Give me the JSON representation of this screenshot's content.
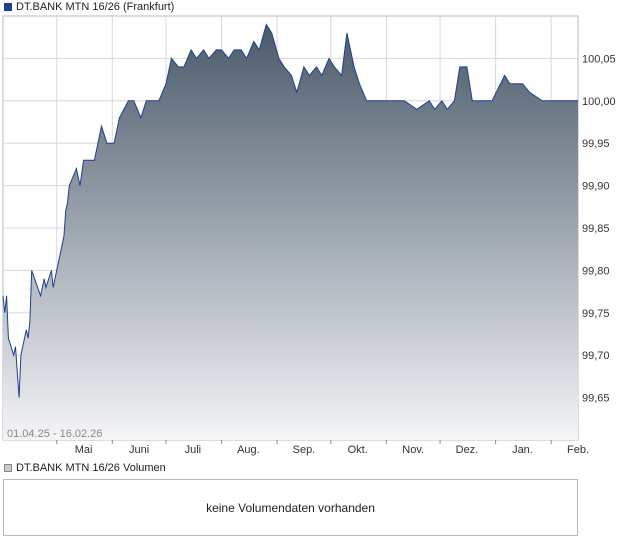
{
  "header": {
    "title": "DT.BANK MTN 16/26 (Frankfurt)"
  },
  "range_label": "01.04.25 - 16.02.26",
  "volume": {
    "title": "DT.BANK MTN 16/26 Volumen",
    "empty_message": "keine Volumendaten vorhanden"
  },
  "colors": {
    "line": "#1f3f8f",
    "fill_top": "#4a5a6a",
    "fill_bottom": "#f4f5f7",
    "grid": "#d8d8d8"
  },
  "chart_data": {
    "type": "area",
    "title": "DT.BANK MTN 16/26 (Frankfurt)",
    "ylim": [
      99.6,
      100.1
    ],
    "y_ticks": [
      "100,05",
      "100,00",
      "99,95",
      "99,90",
      "99,85",
      "99,80",
      "99,75",
      "99,70",
      "99,65"
    ],
    "y_tick_values": [
      100.05,
      100.0,
      99.95,
      99.9,
      99.85,
      99.8,
      99.75,
      99.7,
      99.65
    ],
    "x_ticks": [
      "Mai",
      "Juni",
      "Juli",
      "Aug.",
      "Sep.",
      "Okt.",
      "Nov.",
      "Dez.",
      "Jan.",
      "Feb."
    ],
    "x_tick_dates": [
      "2025-05-01",
      "2025-06-01",
      "2025-07-01",
      "2025-08-01",
      "2025-09-01",
      "2025-10-01",
      "2025-11-01",
      "2025-12-01",
      "2026-01-01",
      "2026-02-01"
    ],
    "x_range": [
      "2025-04-01",
      "2026-02-16"
    ],
    "grid": true,
    "series": [
      {
        "x": [
          "2025-04-01",
          "2025-04-02",
          "2025-04-03",
          "2025-04-04",
          "2025-04-07",
          "2025-04-08",
          "2025-04-09",
          "2025-04-10",
          "2025-04-11",
          "2025-04-14",
          "2025-04-15",
          "2025-04-16",
          "2025-04-17",
          "2025-04-22",
          "2025-04-23",
          "2025-04-24",
          "2025-04-25",
          "2025-04-28",
          "2025-04-29",
          "2025-04-30",
          "2025-05-02",
          "2025-05-05",
          "2025-05-06",
          "2025-05-07",
          "2025-05-08",
          "2025-05-12",
          "2025-05-14",
          "2025-05-16",
          "2025-05-20",
          "2025-05-22",
          "2025-05-26",
          "2025-05-29",
          "2025-06-02",
          "2025-06-05",
          "2025-06-10",
          "2025-06-13",
          "2025-06-17",
          "2025-06-20",
          "2025-06-24",
          "2025-06-27",
          "2025-07-01",
          "2025-07-04",
          "2025-07-08",
          "2025-07-11",
          "2025-07-15",
          "2025-07-18",
          "2025-07-22",
          "2025-07-25",
          "2025-07-29",
          "2025-08-01",
          "2025-08-05",
          "2025-08-08",
          "2025-08-12",
          "2025-08-15",
          "2025-08-19",
          "2025-08-22",
          "2025-08-26",
          "2025-08-29",
          "2025-09-02",
          "2025-09-05",
          "2025-09-09",
          "2025-09-12",
          "2025-09-16",
          "2025-09-19",
          "2025-09-23",
          "2025-09-26",
          "2025-09-30",
          "2025-10-03",
          "2025-10-07",
          "2025-10-10",
          "2025-10-14",
          "2025-10-17",
          "2025-10-21",
          "2025-10-28",
          "2025-11-04",
          "2025-11-11",
          "2025-11-18",
          "2025-11-25",
          "2025-11-28",
          "2025-12-02",
          "2025-12-05",
          "2025-12-09",
          "2025-12-12",
          "2025-12-16",
          "2025-12-19",
          "2025-12-23",
          "2025-12-30",
          "2026-01-06",
          "2026-01-09",
          "2026-01-13",
          "2026-01-16",
          "2026-01-20",
          "2026-01-27",
          "2026-02-03",
          "2026-02-10",
          "2026-02-16"
        ],
        "values": [
          99.77,
          99.75,
          99.77,
          99.72,
          99.7,
          99.71,
          99.68,
          99.65,
          99.7,
          99.73,
          99.72,
          99.74,
          99.8,
          99.77,
          99.78,
          99.79,
          99.78,
          99.8,
          99.78,
          99.79,
          99.81,
          99.84,
          99.87,
          99.88,
          99.9,
          99.92,
          99.9,
          99.93,
          99.93,
          99.93,
          99.97,
          99.95,
          99.95,
          99.98,
          100.0,
          100.0,
          99.98,
          100.0,
          100.0,
          100.0,
          100.02,
          100.05,
          100.04,
          100.04,
          100.06,
          100.05,
          100.06,
          100.05,
          100.06,
          100.06,
          100.05,
          100.06,
          100.06,
          100.05,
          100.07,
          100.06,
          100.09,
          100.08,
          100.05,
          100.04,
          100.03,
          100.01,
          100.04,
          100.03,
          100.04,
          100.03,
          100.05,
          100.04,
          100.03,
          100.08,
          100.04,
          100.02,
          100.0,
          100.0,
          100.0,
          100.0,
          99.99,
          100.0,
          99.99,
          100.0,
          99.99,
          100.0,
          100.04,
          100.04,
          100.0,
          100.0,
          100.0,
          100.03,
          100.02,
          100.02,
          100.02,
          100.01,
          100.0,
          100.0,
          100.0,
          100.0
        ]
      }
    ]
  }
}
